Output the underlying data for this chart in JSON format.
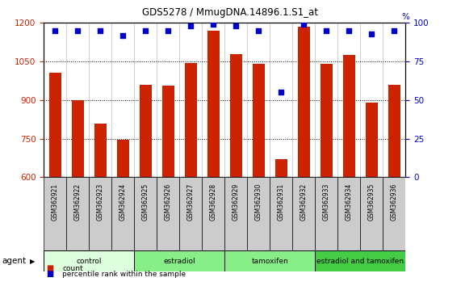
{
  "title": "GDS5278 / MmugDNA.14896.1.S1_at",
  "samples": [
    "GSM362921",
    "GSM362922",
    "GSM362923",
    "GSM362924",
    "GSM362925",
    "GSM362926",
    "GSM362927",
    "GSM362928",
    "GSM362929",
    "GSM362930",
    "GSM362931",
    "GSM362932",
    "GSM362933",
    "GSM362934",
    "GSM362935",
    "GSM362936"
  ],
  "counts": [
    1005,
    900,
    810,
    745,
    960,
    955,
    1045,
    1170,
    1080,
    1040,
    670,
    1185,
    1040,
    1075,
    890,
    960
  ],
  "percentiles": [
    95,
    95,
    95,
    92,
    95,
    95,
    98,
    99,
    98,
    95,
    55,
    99,
    95,
    95,
    93,
    95
  ],
  "groups": [
    {
      "label": "control",
      "start": 0,
      "end": 4,
      "color": "#ddffdd"
    },
    {
      "label": "estradiol",
      "start": 4,
      "end": 8,
      "color": "#88ee88"
    },
    {
      "label": "tamoxifen",
      "start": 8,
      "end": 12,
      "color": "#88ee88"
    },
    {
      "label": "estradiol and tamoxifen",
      "start": 12,
      "end": 16,
      "color": "#44cc44"
    }
  ],
  "ylim_left": [
    600,
    1200
  ],
  "ylim_right": [
    0,
    100
  ],
  "yticks_left": [
    600,
    750,
    900,
    1050,
    1200
  ],
  "yticks_right": [
    0,
    25,
    50,
    75,
    100
  ],
  "bar_color": "#cc2200",
  "dot_color": "#0000cc",
  "bar_width": 0.55,
  "agent_label": "agent",
  "legend_count_label": "count",
  "legend_percentile_label": "percentile rank within the sample",
  "bg_color": "#ffffff",
  "tick_label_color_left": "#cc2200",
  "tick_label_color_right": "#0000cc",
  "sample_box_color": "#cccccc",
  "grid_lines_at": [
    750,
    900,
    1050
  ]
}
